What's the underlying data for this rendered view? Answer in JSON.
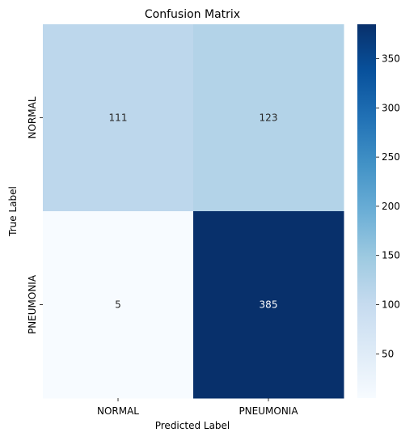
{
  "chart_data": {
    "type": "heatmap",
    "title": "Confusion Matrix",
    "xlabel": "Predicted Label",
    "ylabel": "True Label",
    "x_categories": [
      "NORMAL",
      "PNEUMONIA"
    ],
    "y_categories": [
      "NORMAL",
      "PNEUMONIA"
    ],
    "values": [
      [
        111,
        123
      ],
      [
        5,
        385
      ]
    ],
    "colormap": "Blues",
    "color_range": [
      5,
      385
    ],
    "colorbar_ticks": [
      50,
      100,
      150,
      200,
      250,
      300,
      350
    ],
    "colors": {
      "low": "#f7fbff",
      "high": "#08306b",
      "annot_dark": "#262626",
      "annot_light": "#ffffff"
    }
  }
}
